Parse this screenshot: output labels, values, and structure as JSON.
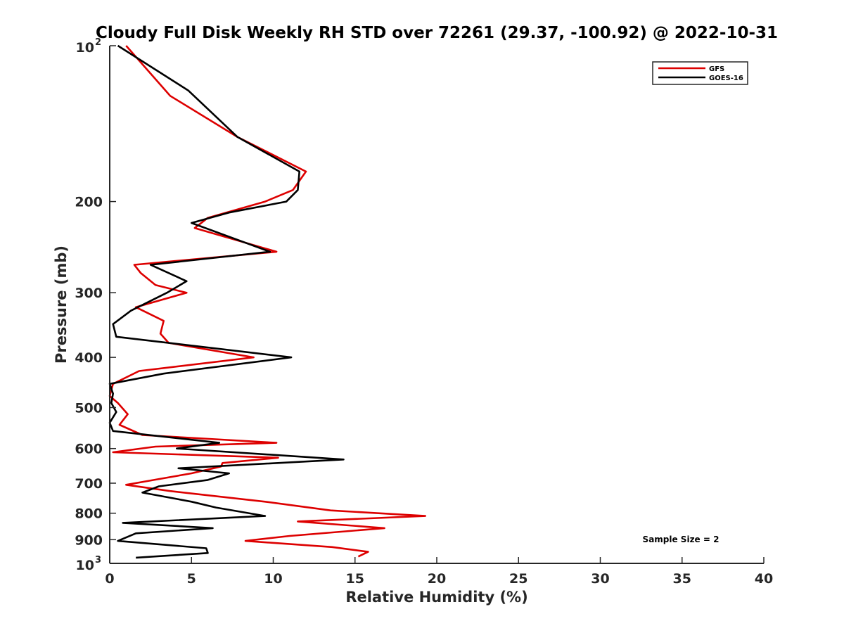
{
  "chart_data": {
    "type": "line",
    "title": "Cloudy Full Disk Weekly RH STD over 72261 (29.37, -100.92) @ 2022-10-31",
    "xlabel": "Relative Humidity (%)",
    "ylabel": "Pressure (mb)",
    "xlim": [
      0,
      40
    ],
    "ylim": [
      100,
      1000
    ],
    "yscale": "log",
    "y_reversed": true,
    "grid": false,
    "legend_position": "top-right",
    "x_ticks": [
      "0",
      "5",
      "10",
      "15",
      "20",
      "25",
      "30",
      "35",
      "40"
    ],
    "y_ticks": [
      {
        "value": 100,
        "base": "10",
        "exp": "2"
      },
      {
        "value": 200,
        "label": "200"
      },
      {
        "value": 300,
        "label": "300"
      },
      {
        "value": 400,
        "label": "400"
      },
      {
        "value": 500,
        "label": "500"
      },
      {
        "value": 600,
        "label": "600"
      },
      {
        "value": 700,
        "label": "700"
      },
      {
        "value": 800,
        "label": "800"
      },
      {
        "value": 900,
        "label": "900"
      },
      {
        "value": 1000,
        "base": "10",
        "exp": "3"
      }
    ],
    "annotation": "Sample Size = 2",
    "series": [
      {
        "name": "GFS",
        "color": "#dd0000",
        "points": [
          [
            1.0,
            100
          ],
          [
            3.7,
            125
          ],
          [
            7.8,
            150
          ],
          [
            12.0,
            175
          ],
          [
            11.2,
            190
          ],
          [
            9.5,
            200
          ],
          [
            6.0,
            215
          ],
          [
            5.2,
            225
          ],
          [
            10.2,
            250
          ],
          [
            1.5,
            265
          ],
          [
            1.9,
            275
          ],
          [
            2.8,
            290
          ],
          [
            4.7,
            300
          ],
          [
            1.6,
            320
          ],
          [
            3.3,
            340
          ],
          [
            3.1,
            360
          ],
          [
            3.6,
            375
          ],
          [
            8.8,
            400
          ],
          [
            1.8,
            425
          ],
          [
            0.2,
            450
          ],
          [
            0.0,
            475
          ],
          [
            0.5,
            490
          ],
          [
            1.1,
            515
          ],
          [
            0.6,
            540
          ],
          [
            2.0,
            565
          ],
          [
            10.2,
            585
          ],
          [
            2.8,
            595
          ],
          [
            0.2,
            610
          ],
          [
            10.3,
            625
          ],
          [
            6.9,
            640
          ],
          [
            6.8,
            650
          ],
          [
            5.0,
            670
          ],
          [
            2.7,
            690
          ],
          [
            1.0,
            705
          ],
          [
            3.7,
            725
          ],
          [
            9.5,
            760
          ],
          [
            13.5,
            790
          ],
          [
            19.3,
            810
          ],
          [
            11.5,
            830
          ],
          [
            16.8,
            855
          ],
          [
            11.0,
            885
          ],
          [
            8.3,
            905
          ],
          [
            13.6,
            930
          ],
          [
            15.8,
            950
          ],
          [
            15.2,
            970
          ]
        ]
      },
      {
        "name": "GOES-16",
        "color": "#000000",
        "points": [
          [
            0.5,
            100
          ],
          [
            4.8,
            122
          ],
          [
            7.8,
            150
          ],
          [
            11.6,
            175
          ],
          [
            11.5,
            190
          ],
          [
            10.8,
            200
          ],
          [
            7.3,
            210
          ],
          [
            5.0,
            220
          ],
          [
            9.8,
            250
          ],
          [
            2.5,
            265
          ],
          [
            4.7,
            285
          ],
          [
            3.5,
            300
          ],
          [
            1.3,
            325
          ],
          [
            0.2,
            345
          ],
          [
            0.4,
            365
          ],
          [
            11.1,
            400
          ],
          [
            3.3,
            430
          ],
          [
            0.0,
            450
          ],
          [
            0.2,
            470
          ],
          [
            0.1,
            490
          ],
          [
            0.4,
            510
          ],
          [
            0.0,
            535
          ],
          [
            0.2,
            555
          ],
          [
            6.7,
            585
          ],
          [
            4.1,
            600
          ],
          [
            14.3,
            630
          ],
          [
            4.2,
            655
          ],
          [
            7.3,
            670
          ],
          [
            6.0,
            690
          ],
          [
            3.0,
            710
          ],
          [
            2.0,
            730
          ],
          [
            5.0,
            760
          ],
          [
            6.5,
            780
          ],
          [
            9.5,
            810
          ],
          [
            0.8,
            835
          ],
          [
            6.3,
            855
          ],
          [
            1.6,
            875
          ],
          [
            0.5,
            905
          ],
          [
            5.9,
            935
          ],
          [
            6.0,
            955
          ],
          [
            1.6,
            975
          ]
        ]
      }
    ]
  }
}
